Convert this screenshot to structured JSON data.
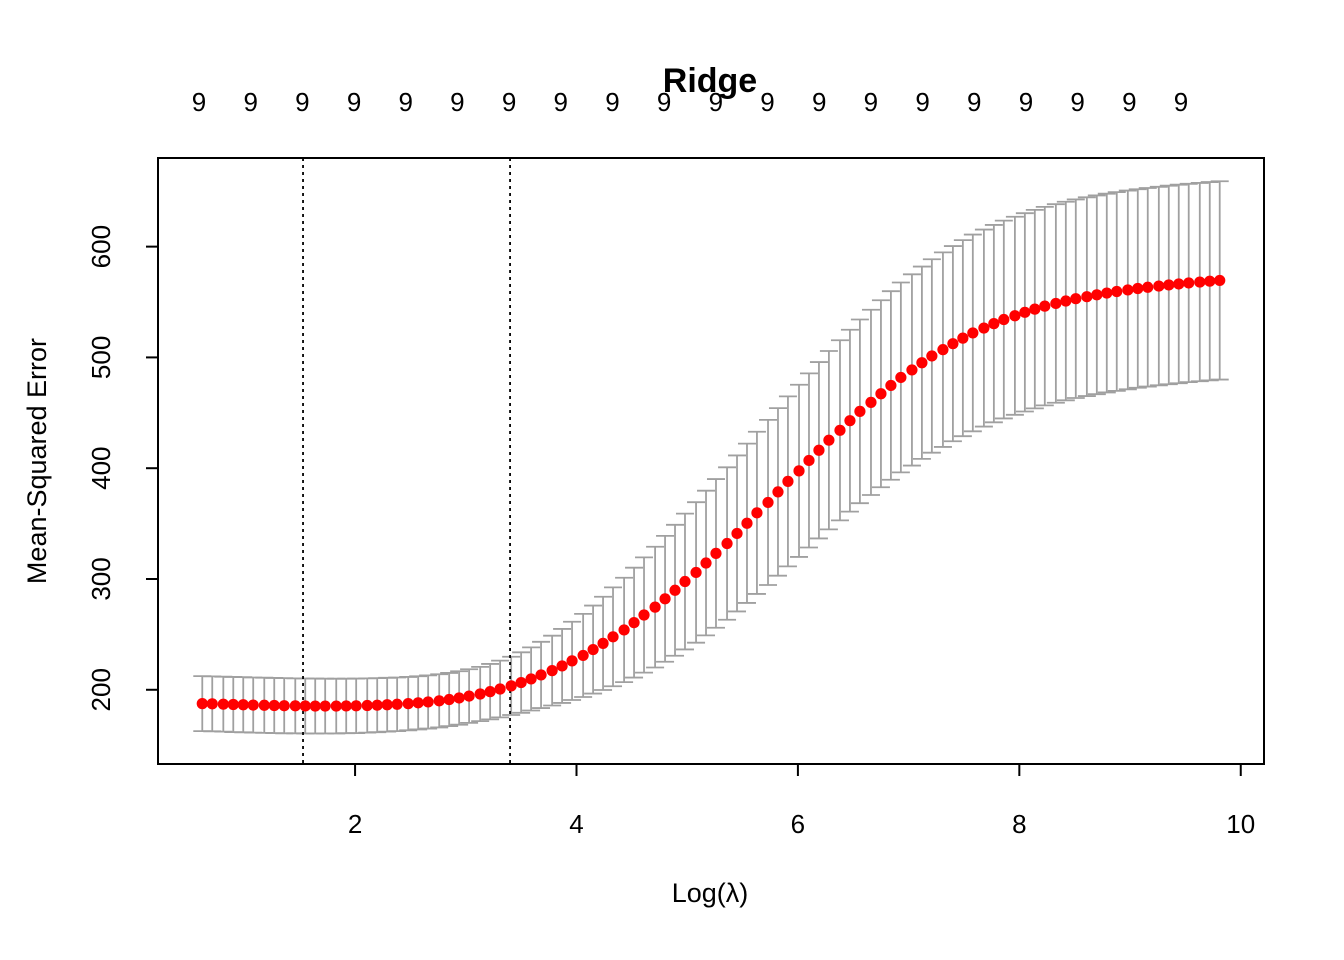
{
  "chart_data": {
    "type": "scatter",
    "title": "Ridge",
    "xlabel": "Log(λ)",
    "ylabel": "Mean-Squared Error",
    "xlim": [
      0.22,
      10.21
    ],
    "ylim": [
      133,
      680
    ],
    "x_ticks": [
      2,
      4,
      6,
      8,
      10
    ],
    "x_tick_labels": [
      "2",
      "4",
      "6",
      "8",
      "10"
    ],
    "y_ticks": [
      200,
      300,
      400,
      500,
      600
    ],
    "y_tick_labels": [
      "200",
      "300",
      "400",
      "500",
      "600"
    ],
    "top_axis_labels": [
      "9",
      "9",
      "9",
      "9",
      "9",
      "9",
      "9",
      "9",
      "9",
      "9",
      "9",
      "9",
      "9",
      "9",
      "9",
      "9",
      "9",
      "9",
      "9",
      "9"
    ],
    "vlines": [
      1.53,
      3.4
    ],
    "grid": false,
    "point_color": "#ff0000",
    "errorbar_color": "#a0a0a0",
    "series": [
      {
        "x": [
          9.81,
          9.72,
          9.63,
          9.53,
          9.44,
          9.35,
          9.26,
          9.16,
          9.07,
          8.98,
          8.88,
          8.79,
          8.7,
          8.61,
          8.51,
          8.42,
          8.33,
          8.23,
          8.14,
          8.05,
          7.96,
          7.86,
          7.77,
          7.68,
          7.58,
          7.49,
          7.4,
          7.31,
          7.21,
          7.12,
          7.03,
          6.93,
          6.84,
          6.75,
          6.66,
          6.56,
          6.47,
          6.38,
          6.28,
          6.19,
          6.1,
          6.01,
          5.91,
          5.82,
          5.73,
          5.63,
          5.54,
          5.45,
          5.36,
          5.26,
          5.17,
          5.08,
          4.98,
          4.89,
          4.8,
          4.71,
          4.61,
          4.52,
          4.43,
          4.33,
          4.24,
          4.15,
          4.06,
          3.96,
          3.87,
          3.78,
          3.68,
          3.59,
          3.5,
          3.41,
          3.31,
          3.22,
          3.13,
          3.03,
          2.94,
          2.85,
          2.76,
          2.66,
          2.57,
          2.48,
          2.38,
          2.29,
          2.2,
          2.11,
          2.01,
          1.92,
          1.83,
          1.73,
          1.64,
          1.55,
          1.46,
          1.36,
          1.27,
          1.18,
          1.08,
          0.99,
          0.9,
          0.81,
          0.71,
          0.62
        ],
        "y": [
          569.5,
          568.8,
          568.0,
          567.2,
          566.3,
          565.4,
          564.4,
          563.3,
          562.2,
          560.9,
          559.5,
          558.1,
          556.5,
          554.8,
          553.0,
          550.9,
          548.7,
          546.3,
          543.6,
          540.7,
          537.6,
          534.2,
          530.5,
          526.5,
          522.1,
          517.4,
          512.4,
          507.0,
          501.3,
          495.2,
          488.7,
          481.9,
          474.7,
          467.2,
          459.4,
          451.3,
          442.9,
          434.2,
          425.3,
          416.2,
          407.0,
          397.6,
          388.1,
          378.6,
          369.1,
          359.7,
          350.3,
          341.1,
          332.0,
          323.1,
          314.4,
          305.9,
          297.7,
          289.8,
          282.1,
          274.6,
          267.5,
          260.6,
          254.0,
          247.8,
          241.9,
          236.3,
          231.0,
          226.1,
          221.5,
          217.3,
          213.4,
          209.8,
          206.5,
          203.5,
          200.7,
          198.3,
          196.2,
          194.3,
          192.6,
          191.2,
          190.0,
          189.0,
          188.2,
          187.5,
          186.9,
          186.5,
          186.1,
          185.8,
          185.5,
          185.4,
          185.3,
          185.3,
          185.3,
          185.4,
          185.5,
          185.6,
          185.8,
          186.0,
          186.2,
          186.5,
          186.7,
          187.0,
          187.3,
          187.5
        ],
        "y_upper": [
          659.0,
          658.3,
          657.5,
          656.7,
          655.9,
          655.0,
          654.0,
          652.9,
          651.8,
          650.6,
          649.2,
          647.8,
          646.2,
          644.5,
          642.6,
          640.5,
          638.3,
          635.9,
          633.2,
          630.2,
          627.0,
          623.5,
          619.6,
          615.4,
          610.9,
          605.9,
          600.5,
          594.8,
          588.6,
          582.0,
          575.0,
          567.6,
          559.8,
          551.6,
          543.0,
          534.2,
          525.0,
          515.5,
          505.8,
          495.8,
          485.6,
          475.3,
          464.8,
          454.2,
          443.6,
          432.9,
          422.2,
          411.5,
          400.8,
          390.2,
          379.7,
          369.3,
          359.0,
          348.9,
          338.9,
          329.1,
          319.5,
          310.2,
          301.1,
          292.4,
          284.0,
          276.0,
          268.5,
          261.4,
          254.9,
          248.8,
          243.3,
          238.3,
          233.8,
          229.8,
          226.3,
          223.3,
          220.7,
          218.5,
          216.7,
          215.2,
          214.0,
          213.0,
          212.2,
          211.6,
          211.1,
          210.8,
          210.5,
          210.3,
          210.1,
          210.0,
          210.0,
          210.0,
          210.1,
          210.2,
          210.3,
          210.5,
          210.7,
          210.9,
          211.1,
          211.4,
          211.6,
          211.8,
          212.1,
          212.3
        ],
        "y_lower": [
          480.0,
          479.3,
          478.5,
          477.7,
          476.7,
          475.8,
          474.8,
          473.7,
          472.6,
          471.2,
          469.8,
          468.4,
          466.8,
          465.1,
          463.4,
          461.3,
          459.1,
          456.7,
          454.0,
          451.2,
          448.2,
          444.9,
          441.4,
          437.6,
          433.3,
          428.9,
          424.3,
          419.2,
          414.0,
          408.4,
          402.4,
          396.2,
          389.6,
          382.8,
          375.8,
          368.4,
          360.8,
          352.9,
          344.8,
          336.6,
          328.4,
          319.9,
          311.4,
          303.0,
          294.6,
          286.5,
          278.4,
          270.7,
          263.2,
          256.0,
          249.1,
          242.5,
          236.4,
          230.7,
          225.3,
          220.1,
          215.5,
          211.0,
          206.9,
          203.2,
          199.8,
          196.6,
          193.5,
          190.8,
          188.1,
          185.8,
          183.5,
          181.3,
          179.2,
          177.2,
          175.1,
          173.3,
          171.7,
          170.1,
          168.5,
          167.2,
          166.0,
          165.0,
          164.2,
          163.4,
          162.7,
          162.2,
          161.7,
          161.3,
          160.9,
          160.8,
          160.6,
          160.6,
          160.5,
          160.6,
          160.7,
          160.7,
          160.9,
          161.1,
          161.3,
          161.6,
          161.8,
          162.2,
          162.5,
          162.7
        ]
      }
    ]
  }
}
